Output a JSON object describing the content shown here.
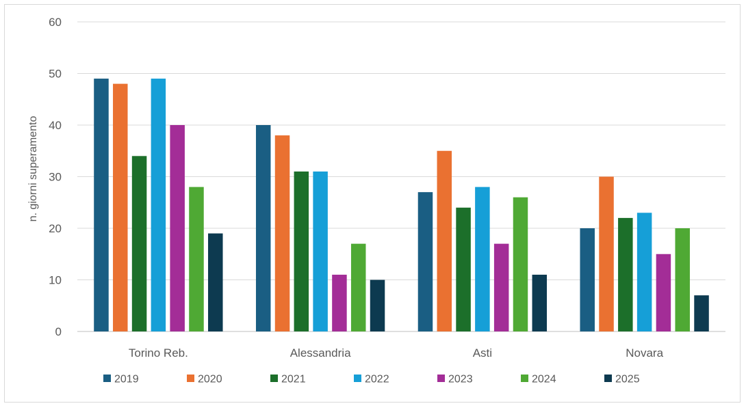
{
  "chart_data": {
    "type": "bar",
    "title": "",
    "xlabel": "",
    "ylabel": "n. giorni superamento",
    "ylim": [
      0,
      60
    ],
    "yticks": [
      0,
      10,
      20,
      30,
      40,
      50,
      60
    ],
    "grid": true,
    "legend_position": "bottom",
    "categories": [
      "Torino Reb.",
      "Alessandria",
      "Asti",
      "Novara"
    ],
    "series": [
      {
        "name": "2019",
        "color": "#1a5e83",
        "values": [
          49,
          40,
          27,
          20
        ]
      },
      {
        "name": "2020",
        "color": "#ea7131",
        "values": [
          48,
          38,
          35,
          30
        ]
      },
      {
        "name": "2021",
        "color": "#1c6f2a",
        "values": [
          34,
          31,
          24,
          22
        ]
      },
      {
        "name": "2022",
        "color": "#169fd7",
        "values": [
          49,
          31,
          28,
          23
        ]
      },
      {
        "name": "2023",
        "color": "#a32d97",
        "values": [
          40,
          11,
          17,
          15
        ]
      },
      {
        "name": "2024",
        "color": "#4fa934",
        "values": [
          28,
          17,
          26,
          20
        ]
      },
      {
        "name": "2025",
        "color": "#0d3a50",
        "values": [
          19,
          10,
          11,
          7
        ]
      }
    ]
  }
}
